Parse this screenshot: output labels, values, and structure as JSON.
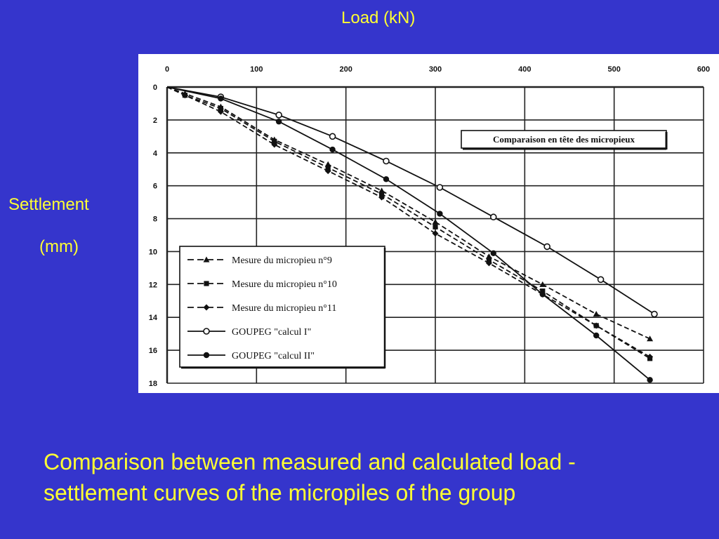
{
  "slide": {
    "x_label": "Load (kN)",
    "y_label_line1": "Settlement",
    "y_label_line2": "(mm)",
    "caption_line1": "Comparison between measured and calculated load -",
    "caption_line2": "settlement curves of the micropiles of the group",
    "background_color": "#3535cc",
    "text_color": "#ffff33"
  },
  "chart_data": {
    "type": "line",
    "title": "Comparaison en tête des micropieux",
    "xlabel": "Load (kN)",
    "ylabel": "Settlement (mm)",
    "xlim": [
      0,
      600
    ],
    "ylim": [
      0,
      18
    ],
    "y_inverted": true,
    "x_axis_position": "top",
    "grid": true,
    "x_ticks": [
      0,
      100,
      200,
      300,
      400,
      500,
      600
    ],
    "y_ticks": [
      0,
      2,
      4,
      6,
      8,
      10,
      12,
      14,
      16,
      18
    ],
    "legend_position": "bottom-left",
    "series": [
      {
        "name": "Mesure du micropieu n°9",
        "line": "dashed",
        "marker": "triangle",
        "points": [
          [
            0,
            0
          ],
          [
            20,
            0.4
          ],
          [
            60,
            1.2
          ],
          [
            120,
            3.2
          ],
          [
            180,
            4.7
          ],
          [
            240,
            6.3
          ],
          [
            300,
            8.2
          ],
          [
            360,
            10.3
          ],
          [
            420,
            12.0
          ],
          [
            480,
            13.8
          ],
          [
            540,
            15.3
          ]
        ]
      },
      {
        "name": "Mesure du micropieu n°10",
        "line": "dashed",
        "marker": "square",
        "points": [
          [
            0,
            0
          ],
          [
            20,
            0.5
          ],
          [
            60,
            1.3
          ],
          [
            120,
            3.3
          ],
          [
            180,
            4.9
          ],
          [
            240,
            6.5
          ],
          [
            300,
            8.5
          ],
          [
            360,
            10.5
          ],
          [
            420,
            12.4
          ],
          [
            480,
            14.5
          ],
          [
            540,
            16.5
          ]
        ]
      },
      {
        "name": "Mesure du micropieu n°11",
        "line": "dashed",
        "marker": "diamond",
        "points": [
          [
            0,
            0
          ],
          [
            20,
            0.5
          ],
          [
            60,
            1.5
          ],
          [
            120,
            3.5
          ],
          [
            180,
            5.1
          ],
          [
            240,
            6.7
          ],
          [
            300,
            8.9
          ],
          [
            360,
            10.7
          ],
          [
            420,
            12.6
          ],
          [
            480,
            14.5
          ],
          [
            540,
            16.4
          ]
        ]
      },
      {
        "name": "GOUPEG \"calcul I\"",
        "line": "solid",
        "marker": "open-circle",
        "points": [
          [
            0,
            0
          ],
          [
            60,
            0.6
          ],
          [
            125,
            1.7
          ],
          [
            185,
            3.0
          ],
          [
            245,
            4.5
          ],
          [
            305,
            6.1
          ],
          [
            365,
            7.9
          ],
          [
            425,
            9.7
          ],
          [
            485,
            11.7
          ],
          [
            545,
            13.8
          ]
        ]
      },
      {
        "name": "GOUPEG \"calcul II\"",
        "line": "solid",
        "marker": "filled-circle",
        "points": [
          [
            0,
            0
          ],
          [
            60,
            0.7
          ],
          [
            125,
            2.1
          ],
          [
            185,
            3.8
          ],
          [
            245,
            5.6
          ],
          [
            305,
            7.7
          ],
          [
            365,
            10.1
          ],
          [
            420,
            12.6
          ],
          [
            480,
            15.1
          ],
          [
            540,
            17.8
          ]
        ]
      }
    ]
  }
}
